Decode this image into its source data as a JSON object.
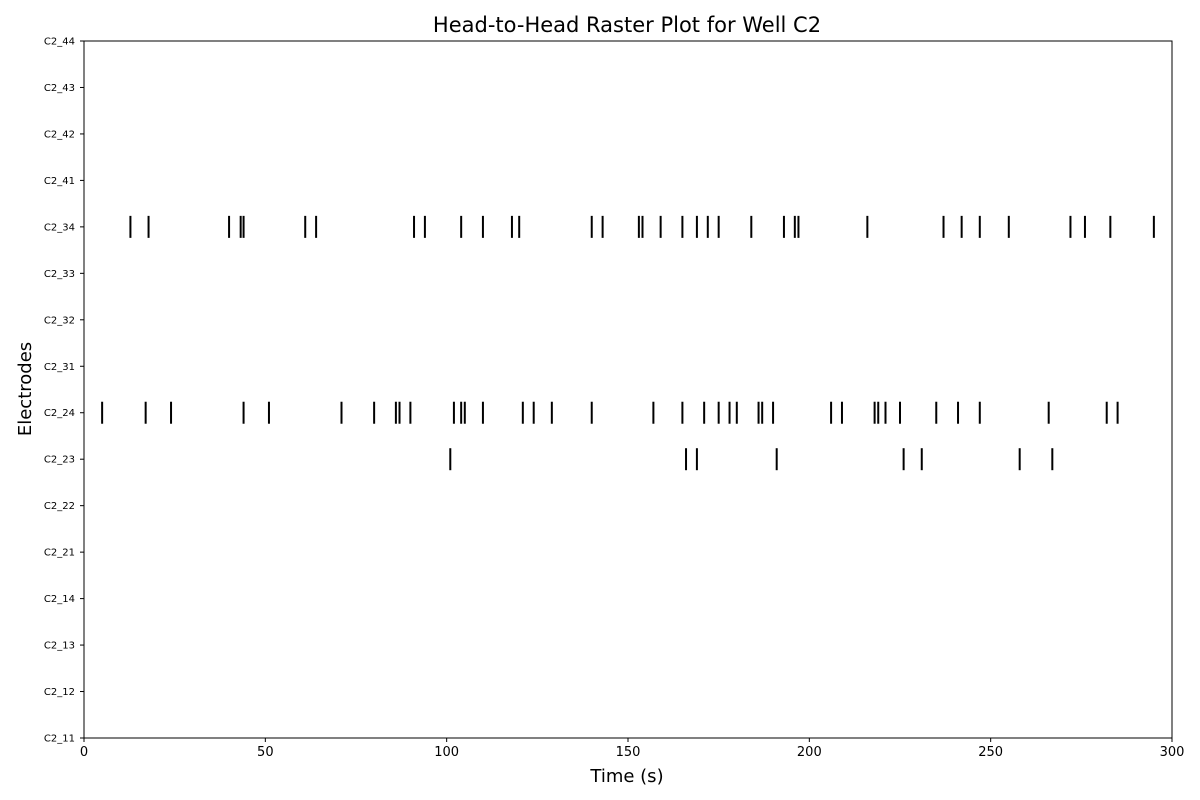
{
  "chart_data": {
    "type": "raster",
    "title": "Head-to-Head Raster Plot for Well C2",
    "xlabel": "Time (s)",
    "ylabel": "Electrodes",
    "xlim": [
      0,
      300
    ],
    "xticks": [
      0,
      50,
      100,
      150,
      200,
      250,
      300
    ],
    "categories": [
      "C2_11",
      "C2_12",
      "C2_13",
      "C2_14",
      "C2_21",
      "C2_22",
      "C2_23",
      "C2_24",
      "C2_31",
      "C2_32",
      "C2_33",
      "C2_34",
      "C2_41",
      "C2_42",
      "C2_43",
      "C2_44"
    ],
    "grid": false,
    "legend": "none",
    "spike_color": "#000000",
    "series": [
      {
        "electrode": "C2_34",
        "spikes": [
          12.8,
          17.8,
          40.0,
          43.2,
          44.0,
          61.0,
          64.0,
          91.0,
          94.0,
          104.0,
          110.0,
          118.0,
          120.0,
          140.0,
          143.0,
          153.0,
          154.0,
          159.0,
          165.0,
          169.0,
          172.0,
          175.0,
          184.0,
          193.0,
          196.0,
          197.0,
          216.0,
          237.0,
          242.0,
          247.0,
          255.0,
          272.0,
          276.0,
          283.0,
          295.0
        ]
      },
      {
        "electrode": "C2_24",
        "spikes": [
          5.0,
          17.0,
          24.0,
          44.0,
          51.0,
          71.0,
          80.0,
          86.0,
          87.0,
          90.0,
          102.0,
          104.0,
          105.0,
          110.0,
          121.0,
          124.0,
          129.0,
          140.0,
          157.0,
          165.0,
          171.0,
          175.0,
          178.0,
          180.0,
          186.0,
          187.0,
          190.0,
          206.0,
          209.0,
          218.0,
          219.0,
          221.0,
          225.0,
          235.0,
          241.0,
          247.0,
          266.0,
          282.0,
          285.0
        ]
      },
      {
        "electrode": "C2_23",
        "spikes": [
          101.0,
          166.0,
          169.0,
          191.0,
          226.0,
          231.0,
          258.0,
          267.0
        ]
      }
    ]
  }
}
